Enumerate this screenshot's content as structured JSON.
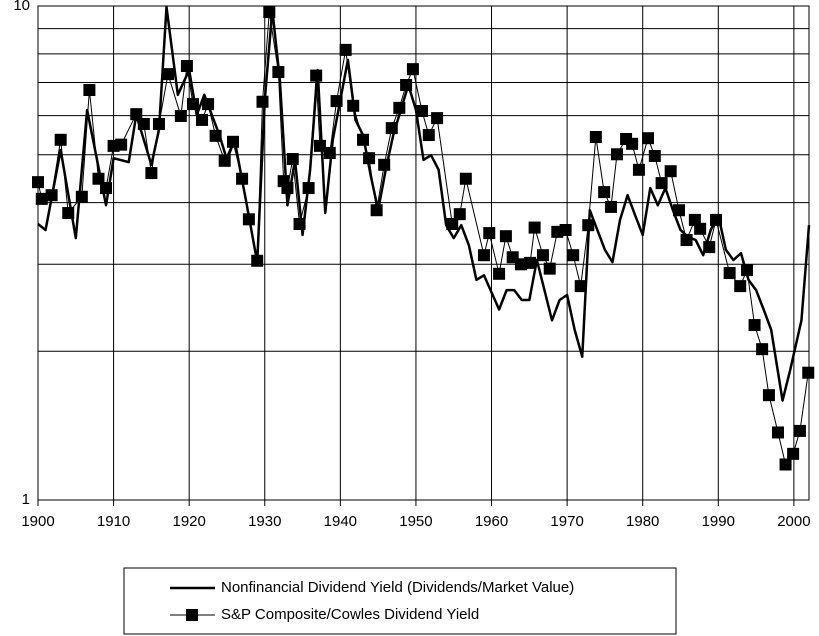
{
  "chart_data": {
    "type": "line",
    "log_y": true,
    "grid": true,
    "xlim": [
      1900,
      2002
    ],
    "xticks": [
      1900,
      1910,
      1920,
      1930,
      1940,
      1950,
      1960,
      1970,
      1980,
      1990,
      2000
    ],
    "ylim": [
      1,
      10
    ],
    "yticks": [
      1,
      10
    ],
    "yminorticks": [
      2,
      3,
      4,
      5,
      6,
      7,
      8,
      9
    ],
    "series": [
      {
        "name": "Nonfinancial Dividend Yield (Dividends/Market Value)",
        "color": "#000000",
        "marker": "none",
        "x": [
          1900,
          1901,
          1903,
          1905,
          1906.5,
          1909,
          1910,
          1912,
          1913,
          1915,
          1916,
          1917,
          1918.5,
          1920,
          1921,
          1922,
          1924,
          1925,
          1926,
          1927.5,
          1929,
          1930,
          1931,
          1932,
          1933,
          1934,
          1935,
          1936,
          1937,
          1938,
          1939,
          1941,
          1942,
          1943,
          1944,
          1945,
          1946,
          1947,
          1948,
          1949,
          1950,
          1951,
          1952,
          1953,
          1954,
          1955,
          1956,
          1957,
          1958,
          1959,
          1961,
          1962,
          1963,
          1964,
          1965,
          1966,
          1967,
          1968,
          1969,
          1970,
          1971,
          1972,
          1973,
          1975,
          1976,
          1977,
          1978,
          1979,
          1980,
          1981,
          1982,
          1983,
          1984,
          1985,
          1986,
          1987,
          1988,
          1989,
          1990,
          1991,
          1992,
          1993,
          1994,
          1995,
          1996,
          1997,
          1998.5,
          1999.5,
          2001,
          2002
        ],
        "values": [
          3.62,
          3.52,
          5.11,
          3.39,
          6.16,
          3.95,
          4.92,
          4.83,
          6.02,
          4.77,
          5.61,
          9.95,
          6.61,
          7.42,
          6.02,
          6.61,
          5.48,
          4.88,
          5.36,
          4.05,
          3.03,
          6.45,
          9.82,
          7.08,
          3.95,
          4.88,
          3.44,
          4.66,
          7.42,
          3.81,
          5.36,
          7.78,
          5.88,
          5.48,
          4.55,
          3.86,
          4.66,
          5.48,
          6.16,
          6.92,
          6.16,
          4.88,
          4.99,
          4.66,
          3.6,
          3.39,
          3.6,
          3.28,
          2.79,
          2.85,
          2.43,
          2.66,
          2.66,
          2.54,
          2.54,
          3.06,
          2.66,
          2.31,
          2.54,
          2.6,
          2.21,
          1.95,
          3.86,
          3.21,
          3.03,
          3.69,
          4.14,
          3.77,
          3.44,
          4.28,
          3.95,
          4.28,
          3.86,
          3.52,
          3.41,
          3.36,
          3.13,
          3.52,
          3.77,
          3.21,
          3.06,
          3.16,
          2.79,
          2.66,
          2.43,
          2.21,
          1.59,
          1.83,
          2.31,
          3.6
        ]
      },
      {
        "name": "S&P Composite/Cowles Dividend Yield",
        "color": "#000000",
        "marker": "square",
        "x": [
          1900,
          1900.5,
          1901.8,
          1903,
          1904,
          1905.8,
          1906.8,
          1908,
          1909,
          1910,
          1911,
          1913,
          1914,
          1915,
          1916,
          1917.2,
          1918.9,
          1919.7,
          1920.5,
          1921.7,
          1922.5,
          1923.5,
          1924.7,
          1925.8,
          1927,
          1927.9,
          1929,
          1929.7,
          1930.6,
          1931.8,
          1932.5,
          1933,
          1933.7,
          1934.6,
          1935.8,
          1936.8,
          1937.3,
          1938.6,
          1939.5,
          1940.7,
          1941.7,
          1943,
          1943.8,
          1944.8,
          1945.8,
          1946.8,
          1947.8,
          1948.7,
          1949.6,
          1950.8,
          1951.7,
          1952.8,
          1954.8,
          1955.8,
          1956.6,
          1959,
          1959.7,
          1961,
          1961.9,
          1962.8,
          1963.9,
          1965.1,
          1965.7,
          1966.8,
          1967.7,
          1968.7,
          1969.8,
          1970.8,
          1971.8,
          1972.8,
          1973.8,
          1974.9,
          1975.8,
          1976.6,
          1977.8,
          1978.6,
          1979.5,
          1980.7,
          1981.6,
          1982.5,
          1983.7,
          1984.8,
          1985.8,
          1986.9,
          1987.6,
          1988.8,
          1989.7,
          1991.5,
          1992.9,
          1993.8,
          1994.8,
          1995.8,
          1996.7,
          1997.9,
          1998.9,
          1999.9,
          2000.8,
          2001.9
        ],
        "values": [
          4.4,
          4.07,
          4.14,
          5.36,
          3.81,
          4.11,
          6.76,
          4.47,
          4.28,
          5.21,
          5.24,
          6.04,
          5.77,
          4.59,
          5.77,
          7.28,
          5.99,
          7.56,
          6.33,
          5.88,
          6.33,
          5.46,
          4.86,
          5.31,
          4.47,
          3.7,
          3.05,
          6.4,
          9.72,
          7.35,
          4.42,
          4.28,
          4.9,
          3.62,
          4.28,
          7.23,
          5.21,
          5.04,
          6.42,
          8.15,
          6.28,
          5.36,
          4.92,
          3.86,
          4.77,
          5.66,
          6.22,
          6.92,
          7.45,
          6.13,
          5.48,
          5.93,
          3.62,
          3.79,
          4.47,
          3.13,
          3.47,
          2.87,
          3.42,
          3.1,
          3.0,
          3.02,
          3.56,
          3.13,
          2.94,
          3.49,
          3.52,
          3.13,
          2.71,
          3.6,
          5.43,
          4.2,
          3.92,
          5.01,
          5.38,
          5.26,
          4.66,
          5.4,
          4.97,
          4.38,
          4.63,
          3.86,
          3.36,
          3.69,
          3.54,
          3.25,
          3.69,
          2.88,
          2.71,
          2.92,
          2.26,
          2.02,
          1.63,
          1.37,
          1.18,
          1.24,
          1.38,
          1.81
        ]
      }
    ]
  }
}
